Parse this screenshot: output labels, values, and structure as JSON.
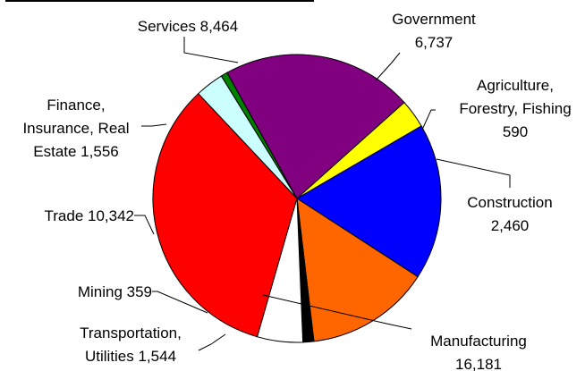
{
  "chart_data": {
    "type": "pie",
    "slices": [
      {
        "label": "Manufacturing",
        "value": 16181,
        "color": "#FF0000",
        "text": [
          "Manufacturing",
          "16,181"
        ]
      },
      {
        "label": "Transportation, Utilities",
        "value": 1544,
        "color": "#CCFFFF",
        "text": [
          "Transportation,",
          "Utilities 1,544"
        ]
      },
      {
        "label": "Mining",
        "value": 359,
        "color": "#008000",
        "text": [
          "Mining 359"
        ]
      },
      {
        "label": "Trade",
        "value": 10342,
        "color": "#800080",
        "text": [
          "Trade 10,342"
        ]
      },
      {
        "label": "Finance, Insurance, Real Estate",
        "value": 1556,
        "color": "#FFFF00",
        "text": [
          "Finance,",
          "Insurance, Real",
          "Estate 1,556"
        ]
      },
      {
        "label": "Services",
        "value": 8464,
        "color": "#0000FF",
        "text": [
          "Services 8,464"
        ]
      },
      {
        "label": "Government",
        "value": 6737,
        "color": "#FF6600",
        "text": [
          "Government",
          "6,737"
        ]
      },
      {
        "label": "Agriculture, Forestry, Fishing",
        "value": 590,
        "color": "#000000",
        "text": [
          "Agriculture,",
          "Forestry, Fishing",
          "590"
        ]
      },
      {
        "label": "Construction",
        "value": 2460,
        "color": "#FFFFFF",
        "text": [
          "Construction",
          "2,460"
        ]
      }
    ]
  }
}
